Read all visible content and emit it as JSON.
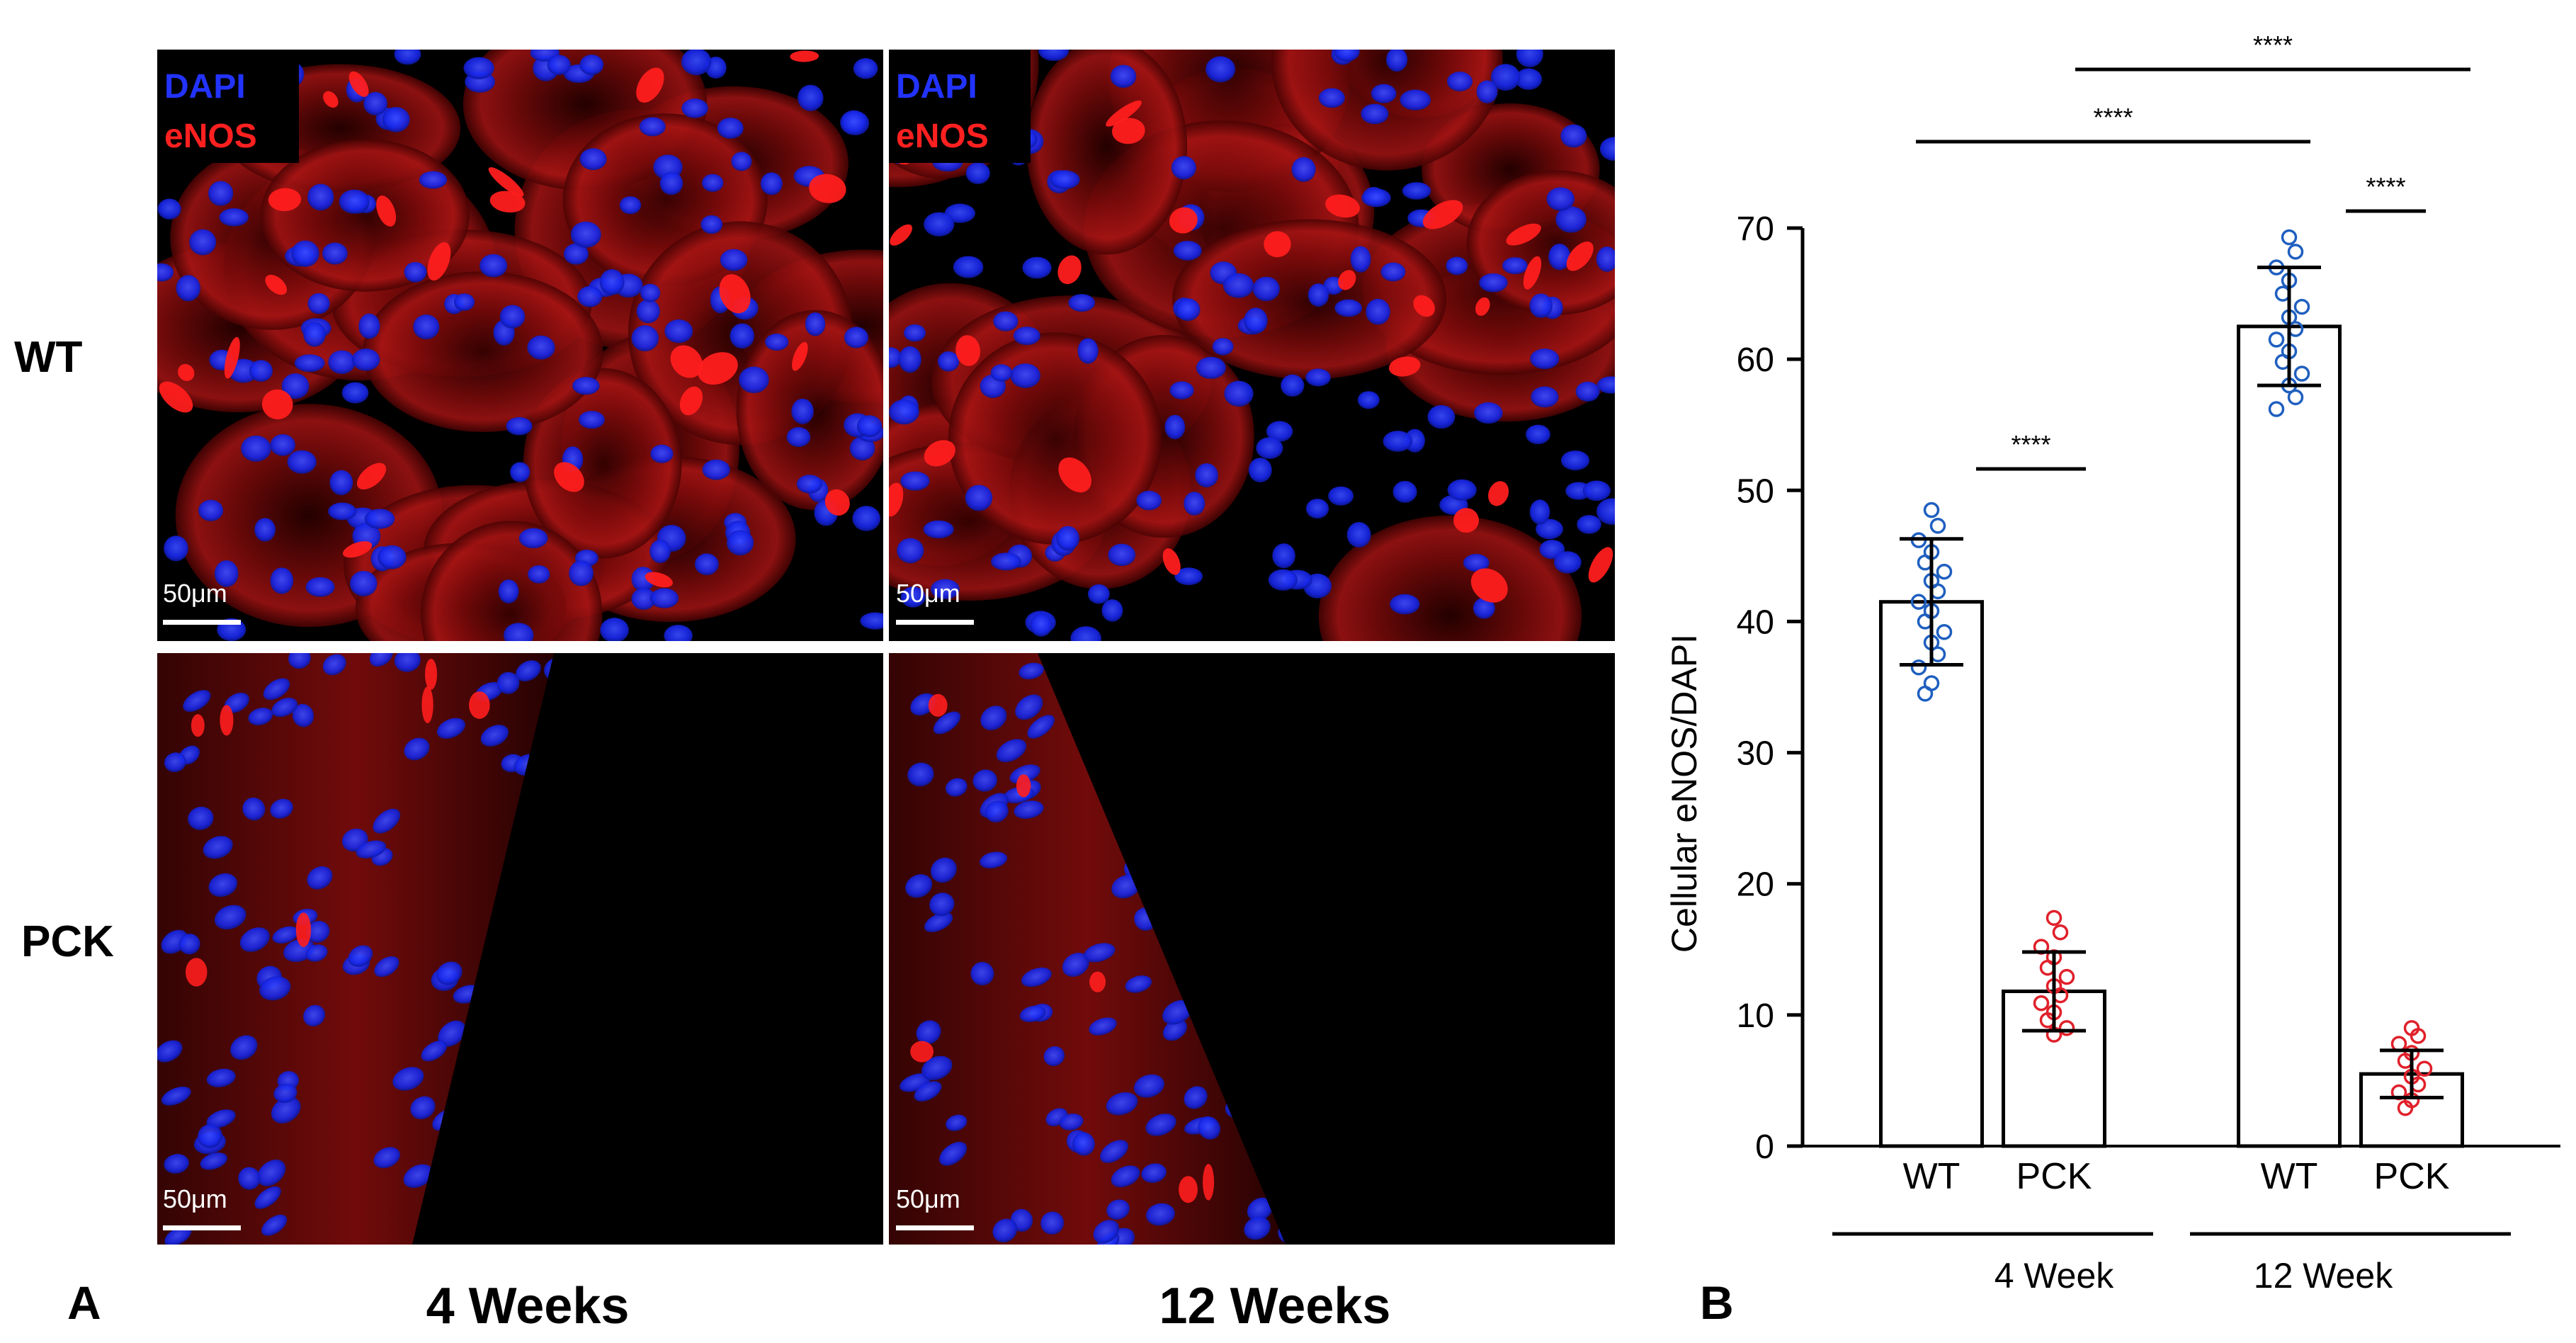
{
  "panel_a": {
    "label": "A",
    "row_labels": [
      "WT",
      "PCK"
    ],
    "column_labels": [
      "4 Weeks",
      "12 Weeks"
    ],
    "stain_labels": {
      "dapi": "DAPI",
      "enos": "eNOS"
    },
    "scale_bar_label": "50μm",
    "colors": {
      "dapi": "#1a2cff",
      "enos": "#ff1a1a",
      "background": "#000000"
    }
  },
  "chart_data": {
    "type": "bar",
    "panel_label": "B",
    "ylabel": "Cellular eNOS/DAPI",
    "ylim": [
      0,
      70
    ],
    "y_ticks": [
      0,
      10,
      20,
      30,
      40,
      50,
      60,
      70
    ],
    "categories": [
      "WT",
      "PCK",
      "WT",
      "PCK"
    ],
    "groups": [
      {
        "label": "4 Week",
        "bars": [
          0,
          1
        ]
      },
      {
        "label": "12 Week",
        "bars": [
          2,
          3
        ]
      }
    ],
    "bars": [
      {
        "category": "WT",
        "group": "4 Week",
        "mean": 41.5,
        "sd": 4.8,
        "color": "#1f5fbf",
        "points": [
          48.5,
          47.3,
          46.2,
          45.3,
          44.5,
          43.8,
          43.1,
          42.3,
          41.5,
          40.8,
          40.0,
          39.2,
          38.4,
          37.5,
          36.5,
          35.3,
          34.5
        ]
      },
      {
        "category": "PCK",
        "group": "4 Week",
        "mean": 11.8,
        "sd": 3.0,
        "color": "#e0202a",
        "points": [
          17.4,
          16.3,
          15.2,
          14.4,
          13.6,
          12.9,
          12.2,
          11.5,
          10.9,
          10.2,
          9.6,
          9.0,
          8.5
        ]
      },
      {
        "category": "WT",
        "group": "12 Week",
        "mean": 62.5,
        "sd": 4.5,
        "color": "#1f5fbf",
        "points": [
          69.3,
          68.2,
          67.0,
          66.0,
          65.0,
          64.0,
          63.2,
          62.3,
          61.5,
          60.6,
          59.8,
          58.9,
          58.0,
          57.1,
          56.2
        ]
      },
      {
        "category": "PCK",
        "group": "12 Week",
        "mean": 5.5,
        "sd": 1.8,
        "color": "#e0202a",
        "points": [
          9.0,
          8.4,
          7.8,
          7.1,
          6.5,
          5.9,
          5.3,
          4.7,
          4.1,
          3.5,
          2.9
        ]
      }
    ],
    "significance": [
      {
        "bars": [
          0,
          1
        ],
        "label": "****"
      },
      {
        "bars": [
          2,
          3
        ],
        "label": "****"
      },
      {
        "bars": [
          0,
          2
        ],
        "label": "****"
      },
      {
        "bars": [
          1,
          3
        ],
        "label": "****"
      }
    ]
  }
}
